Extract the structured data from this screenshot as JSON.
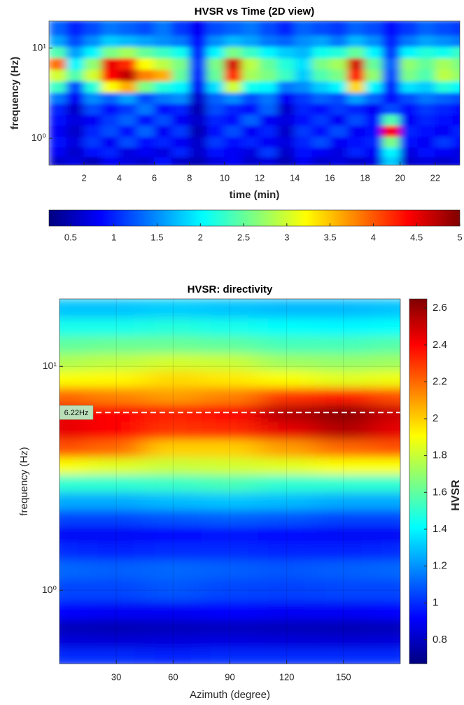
{
  "chart_data": [
    {
      "type": "heatmap",
      "title": "HVSR vs Time (2D view)",
      "x_label": "time (min)",
      "y_label": "frequency (Hz)",
      "colormap": "jet",
      "yscale": "log",
      "grid": false,
      "colorbar_position": "bottom",
      "xlim": [
        0,
        23.4
      ],
      "xticks": [
        2,
        4,
        6,
        8,
        10,
        12,
        14,
        16,
        18,
        20,
        22
      ],
      "ylim": [
        0.5,
        20
      ],
      "yticks": [
        {
          "value": 1,
          "label": "10⁰"
        },
        {
          "value": 10,
          "label": "10¹"
        }
      ],
      "clim": [
        0.25,
        5
      ],
      "cticks": [
        0.5,
        1,
        1.5,
        2,
        2.5,
        3,
        3.5,
        4,
        4.5,
        5
      ],
      "x": [
        0.5,
        1.5,
        2.5,
        3.5,
        4.5,
        5.5,
        6.5,
        7.5,
        8.5,
        9.5,
        10.5,
        11.5,
        12.5,
        13.5,
        14.5,
        15.5,
        16.5,
        17.5,
        18.5,
        19.5,
        20.5,
        21.5,
        22.5,
        23.5
      ],
      "y": [
        0.55,
        0.7,
        0.9,
        1.2,
        1.6,
        2.1,
        2.8,
        3.7,
        5,
        6.7,
        9,
        12,
        16
      ],
      "z": [
        [
          0.6,
          0.7,
          0.5,
          0.8,
          0.7,
          0.6,
          0.9,
          0.6,
          0.5,
          0.7,
          0.8,
          0.6,
          0.7,
          0.5,
          0.8,
          0.6,
          0.7,
          0.6,
          0.7,
          1.8,
          0.6,
          0.7,
          0.6,
          0.7
        ],
        [
          0.8,
          0.6,
          0.9,
          1.0,
          0.7,
          0.8,
          0.7,
          1.0,
          0.6,
          0.9,
          0.8,
          0.7,
          1.1,
          0.6,
          0.9,
          0.8,
          0.7,
          1.0,
          0.8,
          2.0,
          0.7,
          0.9,
          0.8,
          0.7
        ],
        [
          0.9,
          0.7,
          1.1,
          0.8,
          1.2,
          0.9,
          1.0,
          0.8,
          0.6,
          1.1,
          0.9,
          1.0,
          0.8,
          0.7,
          1.0,
          1.2,
          0.8,
          0.9,
          1.0,
          2.6,
          0.9,
          0.8,
          1.1,
          0.9
        ],
        [
          0.8,
          0.6,
          1.0,
          1.2,
          0.9,
          1.3,
          0.8,
          1.1,
          0.5,
          0.9,
          1.2,
          0.8,
          1.0,
          0.6,
          1.1,
          0.9,
          1.2,
          0.8,
          0.9,
          4.4,
          1.0,
          0.9,
          0.8,
          1.0
        ],
        [
          0.9,
          0.7,
          0.8,
          1.1,
          1.3,
          0.9,
          1.2,
          0.8,
          0.6,
          1.0,
          0.9,
          1.3,
          0.8,
          0.7,
          0.9,
          1.1,
          0.8,
          1.2,
          0.9,
          2.4,
          0.8,
          1.0,
          0.9,
          0.8
        ],
        [
          1.0,
          0.6,
          1.2,
          0.9,
          1.1,
          1.4,
          0.9,
          1.0,
          0.5,
          1.2,
          1.0,
          0.9,
          1.3,
          0.6,
          1.0,
          0.9,
          1.1,
          1.0,
          0.8,
          1.2,
          0.9,
          1.1,
          1.0,
          0.9
        ],
        [
          1.4,
          0.8,
          1.5,
          1.3,
          1.6,
          1.2,
          1.4,
          1.5,
          0.6,
          1.3,
          1.5,
          1.2,
          1.4,
          0.8,
          1.1,
          1.3,
          1.2,
          1.6,
          1.3,
          0.9,
          1.2,
          1.4,
          1.3,
          1.2
        ],
        [
          2.3,
          1.2,
          2.2,
          3.2,
          3.6,
          2.6,
          2.2,
          2.0,
          0.8,
          1.9,
          3.0,
          2.1,
          2.0,
          1.4,
          1.5,
          1.8,
          2.0,
          3.4,
          2.0,
          1.0,
          1.9,
          1.8,
          2.2,
          2.0
        ],
        [
          3.0,
          2.4,
          3.0,
          4.4,
          4.7,
          3.8,
          3.6,
          2.5,
          1.0,
          2.5,
          4.2,
          2.8,
          2.6,
          2.3,
          1.8,
          2.4,
          2.6,
          4.3,
          2.7,
          1.2,
          2.6,
          2.4,
          2.9,
          2.7
        ],
        [
          3.9,
          2.0,
          2.7,
          4.5,
          4.2,
          3.2,
          2.9,
          2.6,
          1.1,
          2.6,
          4.6,
          2.9,
          2.5,
          2.2,
          1.9,
          2.6,
          2.8,
          4.6,
          2.5,
          1.3,
          2.7,
          2.5,
          2.8,
          2.6
        ],
        [
          2.4,
          1.6,
          2.0,
          2.6,
          2.8,
          2.5,
          2.3,
          2.1,
          1.0,
          2.0,
          2.6,
          2.3,
          2.0,
          1.8,
          1.7,
          2.1,
          2.2,
          2.5,
          2.0,
          1.1,
          2.0,
          2.2,
          2.1,
          2.3
        ],
        [
          1.6,
          1.2,
          1.5,
          1.8,
          1.7,
          1.6,
          1.5,
          1.4,
          0.9,
          1.5,
          1.7,
          1.6,
          1.4,
          1.3,
          1.5,
          1.6,
          1.4,
          1.7,
          1.5,
          1.0,
          1.4,
          1.6,
          1.5,
          1.4
        ],
        [
          1.3,
          1.0,
          1.2,
          1.4,
          1.3,
          1.2,
          1.4,
          1.1,
          0.8,
          1.2,
          1.3,
          1.4,
          1.2,
          1.0,
          1.3,
          1.2,
          1.1,
          1.3,
          1.2,
          0.9,
          1.1,
          1.3,
          1.2,
          1.1
        ]
      ]
    },
    {
      "type": "heatmap",
      "title": "HVSR: directivity",
      "x_label": "Azimuth (degree)",
      "y_label": "frequency (Hz)",
      "colorbar_label": "HVSR",
      "colormap": "jet",
      "yscale": "log",
      "grid": true,
      "colorbar_position": "right",
      "xlim": [
        0,
        180
      ],
      "xticks": [
        30,
        60,
        90,
        120,
        150
      ],
      "ylim": [
        0.47,
        20
      ],
      "yticks": [
        {
          "value": 1,
          "label": "10⁰"
        },
        {
          "value": 10,
          "label": "10¹"
        }
      ],
      "clim": [
        0.67,
        2.65
      ],
      "cticks": [
        0.8,
        1,
        1.2,
        1.4,
        1.6,
        1.8,
        2,
        2.2,
        2.4,
        2.6
      ],
      "peak": {
        "value": 6.22,
        "label": "6.22Hz"
      },
      "x": [
        0,
        30,
        60,
        90,
        120,
        150,
        180
      ],
      "y": [
        0.5,
        0.6,
        0.68,
        0.8,
        1.0,
        1.25,
        1.5,
        1.8,
        2.1,
        2.5,
        3.0,
        3.6,
        4.3,
        5.2,
        6.2,
        7.4,
        8.8,
        10.5,
        12.5,
        15,
        18
      ],
      "z": [
        [
          1.0,
          1.0,
          0.98,
          1.0,
          1.0,
          1.0,
          1.0
        ],
        [
          0.85,
          0.84,
          0.85,
          0.86,
          0.85,
          0.84,
          0.85
        ],
        [
          0.78,
          0.77,
          0.78,
          0.79,
          0.78,
          0.77,
          0.78
        ],
        [
          0.92,
          0.9,
          0.9,
          0.92,
          0.9,
          0.9,
          0.92
        ],
        [
          1.05,
          1.05,
          1.08,
          1.05,
          1.04,
          1.05,
          1.05
        ],
        [
          1.12,
          1.1,
          1.12,
          1.1,
          1.08,
          1.1,
          1.12
        ],
        [
          1.0,
          0.98,
          1.0,
          1.0,
          0.98,
          0.98,
          1.0
        ],
        [
          0.9,
          0.9,
          0.92,
          0.95,
          0.92,
          0.9,
          0.9
        ],
        [
          1.05,
          1.05,
          1.08,
          1.1,
          1.08,
          1.05,
          1.05
        ],
        [
          1.25,
          1.25,
          1.28,
          1.3,
          1.28,
          1.25,
          1.25
        ],
        [
          1.5,
          1.5,
          1.52,
          1.55,
          1.5,
          1.5,
          1.5
        ],
        [
          1.9,
          1.85,
          1.8,
          1.82,
          1.85,
          1.9,
          1.9
        ],
        [
          2.25,
          2.2,
          2.0,
          2.0,
          2.1,
          2.2,
          2.25
        ],
        [
          2.45,
          2.4,
          2.3,
          2.32,
          2.45,
          2.55,
          2.45
        ],
        [
          2.45,
          2.4,
          2.35,
          2.4,
          2.55,
          2.62,
          2.5
        ],
        [
          2.2,
          2.15,
          2.1,
          2.15,
          2.3,
          2.35,
          2.25
        ],
        [
          1.9,
          1.92,
          1.98,
          1.95,
          1.9,
          1.85,
          1.88
        ],
        [
          1.75,
          1.78,
          1.82,
          1.8,
          1.72,
          1.7,
          1.72
        ],
        [
          1.6,
          1.62,
          1.62,
          1.6,
          1.55,
          1.55,
          1.58
        ],
        [
          1.45,
          1.45,
          1.48,
          1.45,
          1.42,
          1.4,
          1.42
        ],
        [
          1.3,
          1.3,
          1.32,
          1.3,
          1.28,
          1.28,
          1.3
        ]
      ]
    }
  ]
}
